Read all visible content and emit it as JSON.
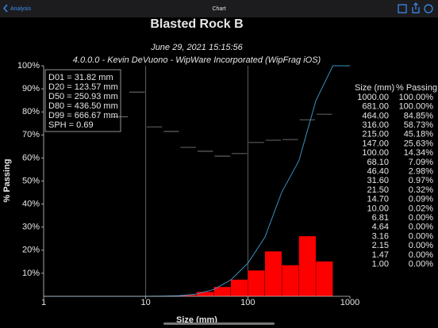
{
  "nav": {
    "back": "Analysis",
    "title": "Chart"
  },
  "chart_data": {
    "type": "histogram",
    "title": "Blasted Rock B",
    "subtitle": [
      "June 29, 2021 15:15:56",
      "4.0.0.0  -  Kevin DeVuono - WipWare Incorporated (WipFrag iOS)"
    ],
    "xlabel": "Size (mm)",
    "ylabel": "% Passing",
    "log_x": true,
    "grid": "x",
    "xlim": [
      1,
      1000
    ],
    "xticks": [
      1,
      10,
      100,
      1000
    ],
    "ylim": [
      0,
      100
    ],
    "yticks": [
      {
        "value": 10,
        "label": "10%"
      },
      {
        "value": 20,
        "label": "20%"
      },
      {
        "value": 30,
        "label": "30%"
      },
      {
        "value": 40,
        "label": "40%"
      },
      {
        "value": 50,
        "label": "50%"
      },
      {
        "value": 60,
        "label": "60%"
      },
      {
        "value": 70,
        "label": "70%"
      },
      {
        "value": 80,
        "label": "80%"
      },
      {
        "value": 90,
        "label": "90%"
      },
      {
        "value": 100,
        "label": "100%"
      }
    ],
    "bins": [
      10,
      14.7,
      21.5,
      31.6,
      46.4,
      68.1,
      100,
      147,
      215,
      316,
      464,
      681
    ],
    "values": [
      0.07,
      0.23,
      0.65,
      2.01,
      4.11,
      7.25,
      11.29,
      19.55,
      13.55,
      26.12,
      15.15
    ],
    "color": "#ff0000",
    "markers": {
      "color": "#8a8a8a",
      "bins": [
        4.64,
        6.81,
        10,
        14.7,
        21.5,
        31.6,
        46.4,
        68.1,
        100,
        147,
        215,
        316,
        464,
        681
      ],
      "values": [
        77.9,
        88.6,
        73.5,
        71.5,
        64.6,
        62.9,
        60.8,
        61.9,
        66.7,
        67.7,
        68.0,
        76.6,
        79.0
      ]
    },
    "line": {
      "color": "#3b8fbf",
      "x": [
        1000,
        681,
        464,
        316,
        215,
        147,
        100,
        68.1,
        46.4,
        31.6,
        21.5,
        14.7,
        10,
        6.81,
        4.64,
        3.16,
        2.15,
        1.47,
        1
      ],
      "x_labels": [
        "1000.00",
        "681.00",
        "464.00",
        "316.00",
        "215.00",
        "147.00",
        "100.00",
        "68.10",
        "46.40",
        "31.60",
        "21.50",
        "14.70",
        "10.00",
        "6.81",
        "4.64",
        "3.16",
        "2.15",
        "1.47",
        "1.00"
      ],
      "values": [
        100,
        100,
        84.85,
        58.73,
        45.18,
        25.63,
        14.34,
        7.09,
        2.98,
        0.97,
        0.32,
        0.09,
        0.02,
        0,
        0,
        0,
        0,
        0,
        0
      ],
      "value_labels": [
        "100.00%",
        "100.00%",
        "84.85%",
        "58.73%",
        "45.18%",
        "25.63%",
        "14.34%",
        "7.09%",
        "2.98%",
        "0.97%",
        "0.32%",
        "0.09%",
        "0.02%",
        "0.00%",
        "0.00%",
        "0.00%",
        "0.00%",
        "0.00%",
        "0.00%"
      ]
    },
    "annotations": [
      "D01 = 31.82 mm",
      "D20 = 123.57 mm",
      "D50 = 250.93 mm",
      "D80 = 436.50 mm",
      "D99 = 666.67 mm",
      "SPH = 0.69"
    ],
    "table_headers": [
      "Size (mm)",
      "% Passing"
    ]
  }
}
